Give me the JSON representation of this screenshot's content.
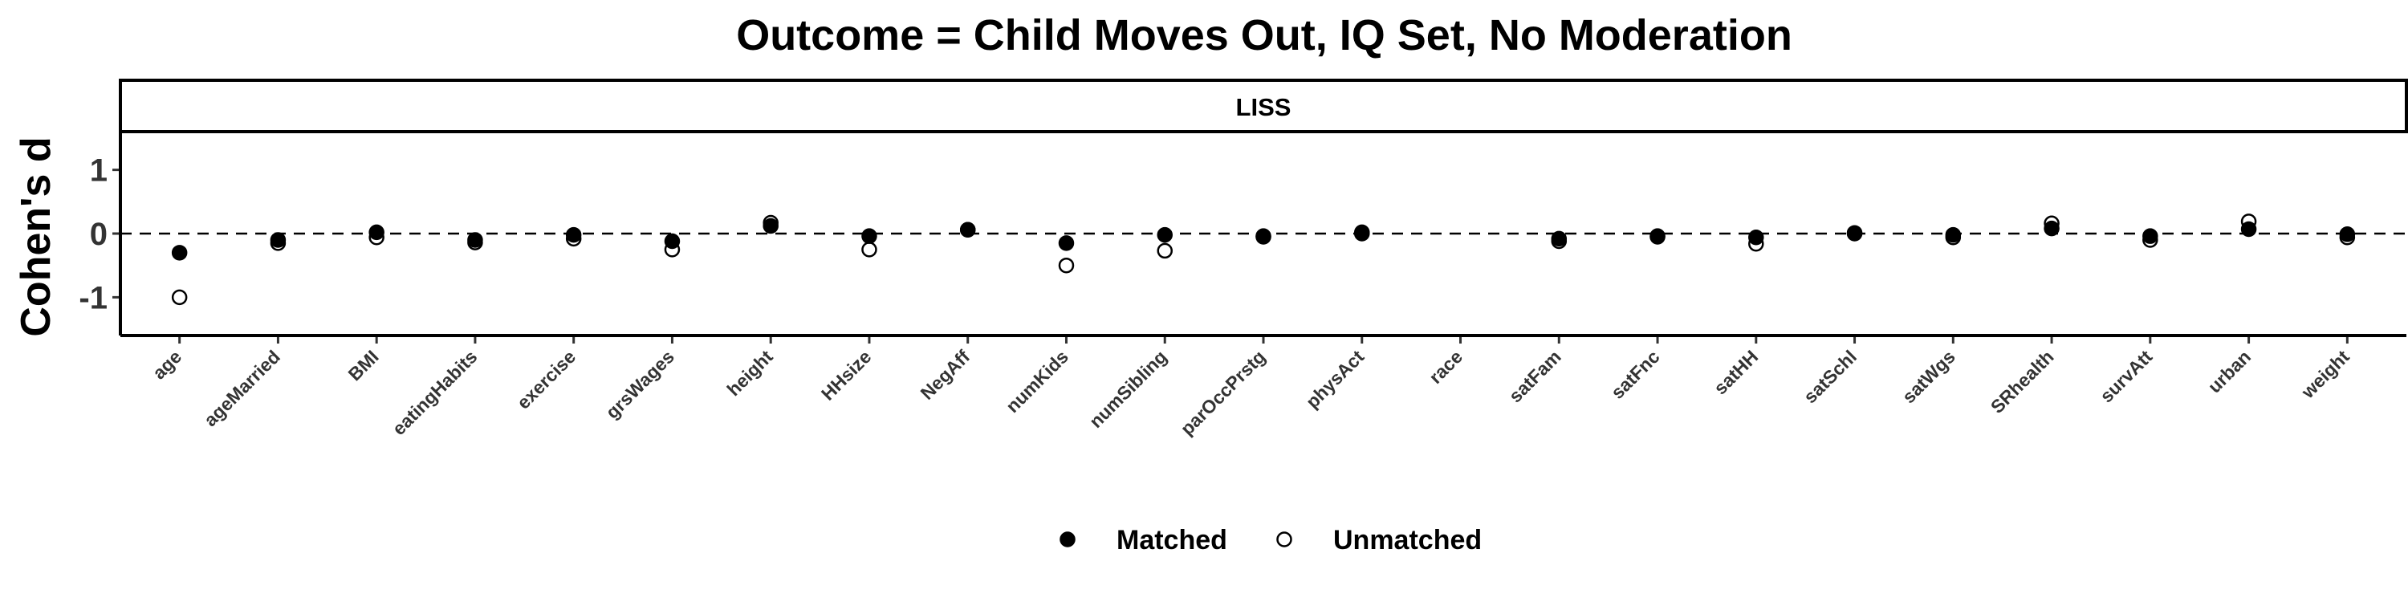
{
  "chart_data": {
    "type": "scatter",
    "title": "Outcome = Child Moves Out, IQ Set, No Moderation",
    "facet": "LISS",
    "ylabel": "Cohen's d",
    "xlabel": "",
    "ylim": [
      -1.6,
      1.6
    ],
    "yticks": [
      1,
      0,
      -1
    ],
    "reference_line": 0,
    "grid": false,
    "legend_position": "bottom",
    "categories": [
      "age",
      "ageMarried",
      "BMI",
      "eatingHabits",
      "exercise",
      "grsWages",
      "height",
      "HHsize",
      "NegAff",
      "numKids",
      "numSibling",
      "parOccPrstg",
      "physAct",
      "race",
      "satFam",
      "satFnc",
      "satHH",
      "satSchl",
      "satWgs",
      "SRhealth",
      "survAtt",
      "urban",
      "weight"
    ],
    "series": [
      {
        "name": "Matched",
        "marker": "filled-circle",
        "values": [
          -0.3,
          -0.1,
          0.02,
          -0.1,
          -0.02,
          -0.12,
          0.12,
          -0.04,
          0.06,
          -0.15,
          -0.02,
          -0.04,
          0.02,
          null,
          -0.08,
          -0.04,
          -0.06,
          0.0,
          -0.02,
          0.08,
          -0.04,
          0.07,
          -0.01
        ]
      },
      {
        "name": "Unmatched",
        "marker": "hollow-circle",
        "values": [
          -1.0,
          -0.15,
          -0.06,
          -0.14,
          -0.08,
          -0.25,
          0.17,
          -0.25,
          0.06,
          -0.5,
          -0.27,
          -0.05,
          0.0,
          null,
          -0.12,
          -0.05,
          -0.16,
          0.01,
          -0.06,
          0.16,
          -0.1,
          0.19,
          -0.06
        ]
      }
    ]
  }
}
